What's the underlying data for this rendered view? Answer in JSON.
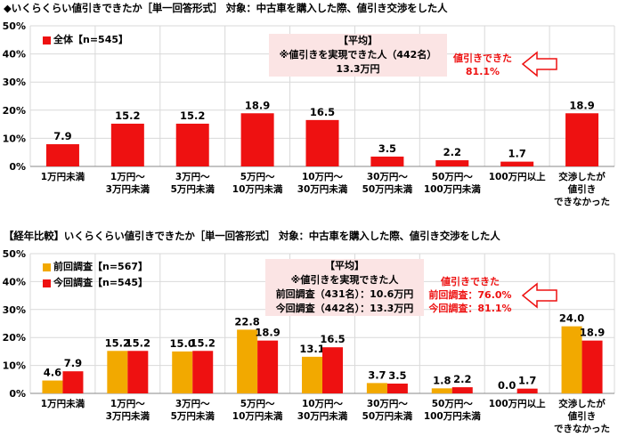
{
  "chart_data": [
    {
      "type": "bar",
      "title": "◆いくらくらい値引きできたか［単一回答形式］ 対象：中古車を購入した際、値引き交渉をした人",
      "ylim": [
        0,
        50
      ],
      "yticks": [
        "0%",
        "10%",
        "20%",
        "30%",
        "40%",
        "50%"
      ],
      "grid": true,
      "legend": "top-left",
      "categories": [
        [
          "1万円未満"
        ],
        [
          "1万円～",
          "3万円未満"
        ],
        [
          "3万円～",
          "5万円未満"
        ],
        [
          "5万円～",
          "10万円未満"
        ],
        [
          "10万円～",
          "30万円未満"
        ],
        [
          "30万円～",
          "50万円未満"
        ],
        [
          "50万円～",
          "100万円未満"
        ],
        [
          "100万円以上"
        ],
        [
          "交渉したが",
          "値引き",
          "できなかった"
        ]
      ],
      "series": [
        {
          "name": "全体【n=545】",
          "color": "#ee1111",
          "values": [
            7.9,
            15.2,
            15.2,
            18.9,
            16.5,
            3.5,
            2.2,
            1.7,
            18.9
          ]
        }
      ],
      "annotations": {
        "box": [
          "【平均】",
          "※値引きを実現できた人（442名）",
          "13.3万円"
        ],
        "red": [
          "値引きできた",
          "81.1%"
        ]
      }
    },
    {
      "type": "bar",
      "title": "【経年比較】いくらくらい値引きできたか［単一回答形式］ 対象：中古車を購入した際、値引き交渉をした人",
      "ylim": [
        0,
        50
      ],
      "yticks": [
        "0%",
        "10%",
        "20%",
        "30%",
        "40%",
        "50%"
      ],
      "grid": true,
      "legend": "top-left",
      "categories": [
        [
          "1万円未満"
        ],
        [
          "1万円～",
          "3万円未満"
        ],
        [
          "3万円～",
          "5万円未満"
        ],
        [
          "5万円～",
          "10万円未満"
        ],
        [
          "10万円～",
          "30万円未満"
        ],
        [
          "30万円～",
          "50万円未満"
        ],
        [
          "50万円～",
          "100万円未満"
        ],
        [
          "100万円以上"
        ],
        [
          "交渉したが",
          "値引き",
          "できなかった"
        ]
      ],
      "series": [
        {
          "name": "前回調査【n=567】",
          "color": "#f2a900",
          "values": [
            4.6,
            15.2,
            15.0,
            22.8,
            13.1,
            3.7,
            1.8,
            0.0,
            24.0
          ]
        },
        {
          "name": "今回調査【n=545】",
          "color": "#ee1111",
          "values": [
            7.9,
            15.2,
            15.2,
            18.9,
            16.5,
            3.5,
            2.2,
            1.7,
            18.9
          ]
        }
      ],
      "annotations": {
        "box": [
          "【平均】",
          "※値引きを実現できた人",
          "前回調査（431名）：10.6万円",
          "今回調査（442名）：13.3万円"
        ],
        "red": [
          "値引きできた",
          "前回調査：76.0%",
          "今回調査：81.1%"
        ]
      }
    }
  ]
}
